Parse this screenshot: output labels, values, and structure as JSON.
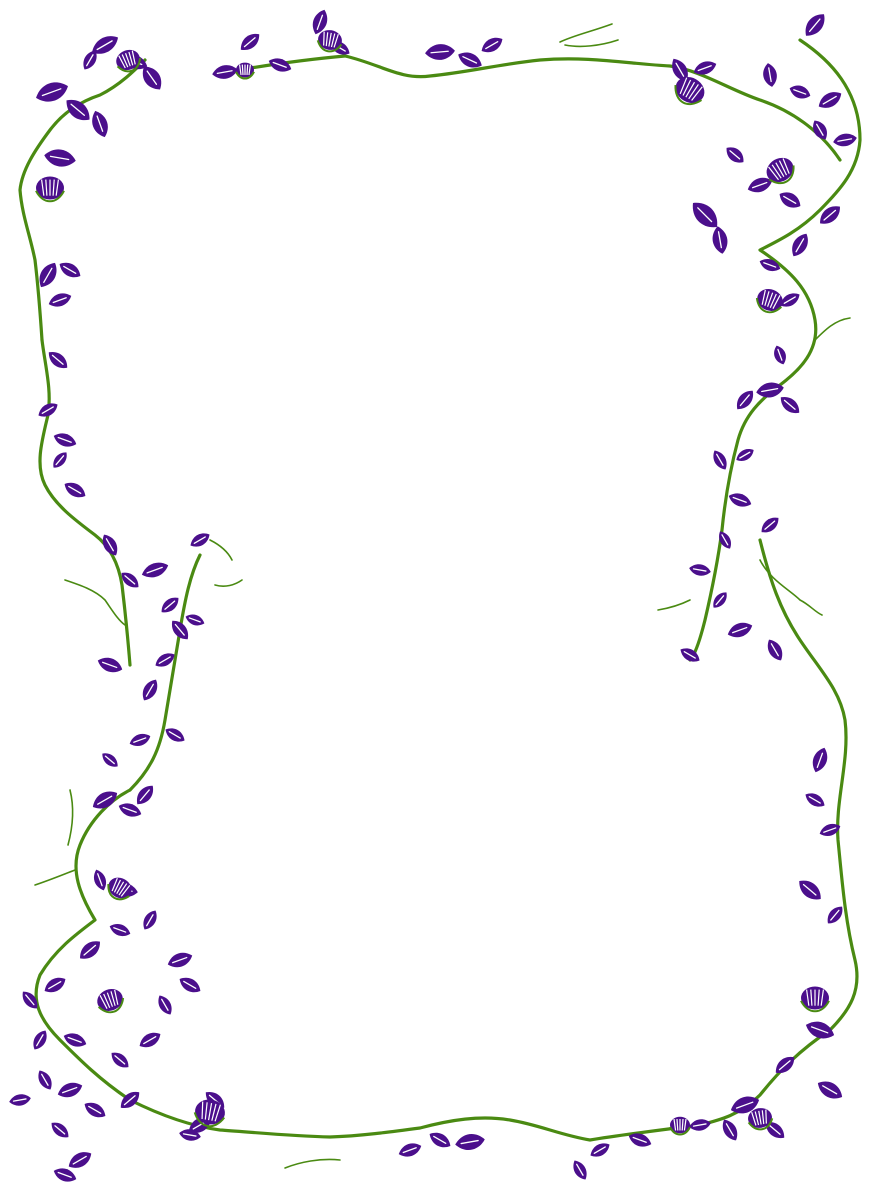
{
  "artwork": {
    "subject": "floral-vine-border",
    "colors": {
      "background": "#ffffff",
      "leaf": "#4b0f8c",
      "vine": "#4a8a12"
    },
    "icons": [
      "leaf-icon",
      "flower-bud-icon",
      "vine-stem",
      "tendril"
    ]
  }
}
